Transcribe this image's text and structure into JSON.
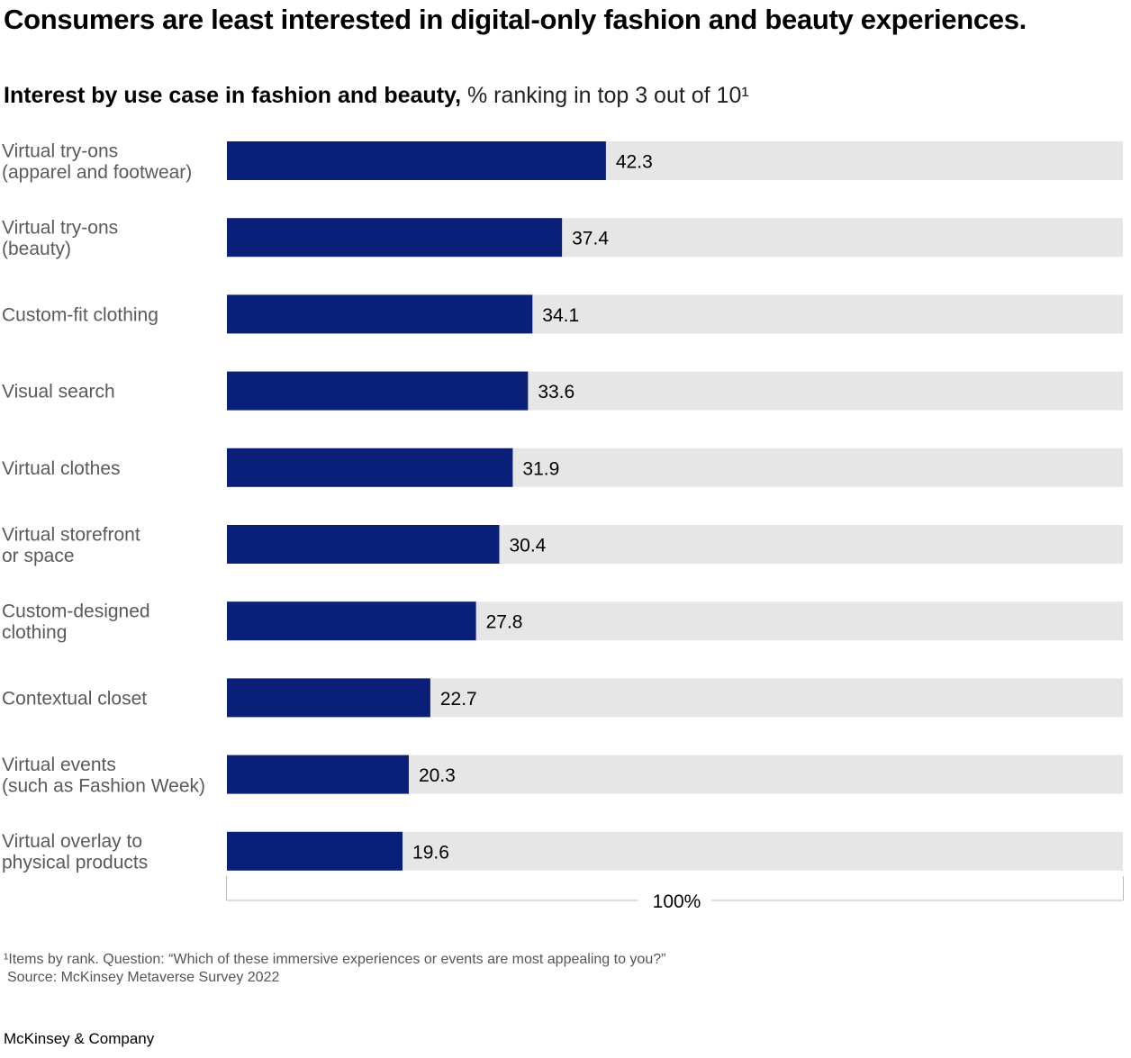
{
  "title": "Consumers are least interested in digital-only fashion and beauty experiences.",
  "subtitle_bold": "Interest by use case in fashion and beauty,",
  "subtitle_rest": " % ranking in top 3 out of 10¹",
  "footnote": "¹Items by rank. Question: “Which of these immersive experiences or events are most appealing to you?”",
  "source": "Source: McKinsey Metaverse Survey 2022",
  "brand": "McKinsey & Company",
  "colors": {
    "bar": "#0a1f78",
    "track": "#e6e6e6",
    "axis": "#bdbdbd"
  },
  "chart_data": {
    "type": "bar",
    "orientation": "horizontal",
    "categories": [
      [
        "Virtual try-ons",
        "(apparel and footwear)"
      ],
      [
        "Virtual try-ons",
        "(beauty)"
      ],
      [
        "Custom-fit clothing"
      ],
      [
        "Visual search"
      ],
      [
        "Virtual clothes"
      ],
      [
        "Virtual storefront",
        "or space"
      ],
      [
        "Custom-designed",
        "clothing"
      ],
      [
        "Contextual closet"
      ],
      [
        "Virtual events",
        "(such as Fashion Week)"
      ],
      [
        "Virtual overlay to",
        "physical products"
      ]
    ],
    "values": [
      42.3,
      37.4,
      34.1,
      33.6,
      31.9,
      30.4,
      27.8,
      22.7,
      20.3,
      19.6
    ],
    "value_labels": [
      "42.3",
      "37.4",
      "34.1",
      "33.6",
      "31.9",
      "30.4",
      "27.8",
      "22.7",
      "20.3",
      "19.6"
    ],
    "xlim": [
      0,
      100
    ],
    "axis_label": "100%",
    "grid": false
  }
}
